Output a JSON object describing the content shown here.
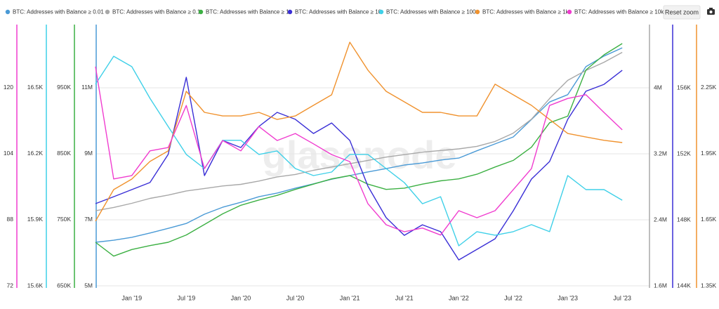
{
  "chart_data": {
    "type": "line",
    "reset_zoom": "Reset zoom",
    "watermark": "glassnode",
    "grid": true,
    "x": [
      "2018-09",
      "2018-11",
      "2019-01",
      "2019-03",
      "2019-05",
      "2019-07",
      "2019-09",
      "2019-11",
      "2020-01",
      "2020-03",
      "2020-05",
      "2020-07",
      "2020-09",
      "2020-11",
      "2021-01",
      "2021-03",
      "2021-05",
      "2021-07",
      "2021-09",
      "2021-11",
      "2022-01",
      "2022-03",
      "2022-05",
      "2022-07",
      "2022-09",
      "2022-11",
      "2023-01",
      "2023-03",
      "2023-05",
      "2023-07"
    ],
    "xlim": [
      "2018-09",
      "2023-10"
    ],
    "xticks": [
      {
        "value": "2019-01",
        "label": "Jan '19"
      },
      {
        "value": "2019-07",
        "label": "Jul '19"
      },
      {
        "value": "2020-01",
        "label": "Jan '20"
      },
      {
        "value": "2020-07",
        "label": "Jul '20"
      },
      {
        "value": "2021-01",
        "label": "Jan '21"
      },
      {
        "value": "2021-07",
        "label": "Jul '21"
      },
      {
        "value": "2022-01",
        "label": "Jan '22"
      },
      {
        "value": "2022-07",
        "label": "Jul '22"
      },
      {
        "value": "2023-01",
        "label": "Jan '23"
      },
      {
        "value": "2023-07",
        "label": "Jul '23"
      }
    ],
    "series": [
      {
        "name": "BTC: Addresses with Balance ≥ 0.01",
        "color": "#4a9ad6",
        "side": "left",
        "ylim": [
          5000000,
          12914000
        ],
        "yticks": [
          {
            "value": 5000000,
            "label": "5M"
          },
          {
            "value": 7000000,
            "label": "7M"
          },
          {
            "value": 9000000,
            "label": "9M"
          },
          {
            "value": 11000000,
            "label": "11M"
          }
        ],
        "values": [
          6320000,
          6380000,
          6470000,
          6600000,
          6740000,
          6890000,
          7170000,
          7380000,
          7530000,
          7700000,
          7810000,
          7960000,
          8090000,
          8230000,
          8340000,
          8450000,
          8550000,
          8660000,
          8720000,
          8810000,
          8870000,
          9090000,
          9300000,
          9510000,
          10040000,
          10570000,
          10790000,
          11640000,
          11960000,
          12210000
        ]
      },
      {
        "name": "BTC: Addresses with Balance ≥ 0.1",
        "color": "#a8a8a8",
        "side": "right",
        "ylim": [
          1600000,
          4766000
        ],
        "yticks": [
          {
            "value": 1600000,
            "label": "1.6M"
          },
          {
            "value": 2400000,
            "label": "2.4M"
          },
          {
            "value": 3200000,
            "label": "3.2M"
          },
          {
            "value": 4000000,
            "label": "4M"
          }
        ],
        "values": [
          2510000,
          2550000,
          2600000,
          2660000,
          2700000,
          2750000,
          2780000,
          2810000,
          2830000,
          2870000,
          2920000,
          2950000,
          3000000,
          3040000,
          3080000,
          3120000,
          3160000,
          3190000,
          3220000,
          3240000,
          3260000,
          3290000,
          3350000,
          3450000,
          3620000,
          3870000,
          4090000,
          4210000,
          4310000,
          4430000
        ]
      },
      {
        "name": "BTC: Addresses with Balance ≥ 1",
        "color": "#3cb043",
        "side": "left",
        "ylim": [
          650000,
          1045700
        ],
        "yticks": [
          {
            "value": 650000,
            "label": "650K"
          },
          {
            "value": 750000,
            "label": "750K"
          },
          {
            "value": 850000,
            "label": "850K"
          },
          {
            "value": 950000,
            "label": "950K"
          }
        ],
        "values": [
          716000,
          695000,
          705000,
          711000,
          716000,
          727000,
          743000,
          759000,
          772000,
          780000,
          787000,
          796000,
          804000,
          812000,
          817000,
          804000,
          796000,
          798000,
          804000,
          809000,
          812000,
          819000,
          830000,
          840000,
          860000,
          897000,
          907000,
          977000,
          1000000,
          1017000
        ]
      },
      {
        "name": "BTC: Addresses with Balance ≥ 10",
        "color": "#3a2fd6",
        "side": "right",
        "ylim": [
          144000,
          159830
        ],
        "yticks": [
          {
            "value": 144000,
            "label": "144K"
          },
          {
            "value": 148000,
            "label": "148K"
          },
          {
            "value": 152000,
            "label": "152K"
          },
          {
            "value": 156000,
            "label": "156K"
          }
        ],
        "values": [
          148980,
          149400,
          149830,
          150260,
          151960,
          156640,
          150680,
          152810,
          152380,
          153660,
          154510,
          154090,
          153230,
          153870,
          152810,
          150040,
          148130,
          147060,
          147700,
          147280,
          145570,
          146210,
          146850,
          148550,
          150470,
          151530,
          154090,
          155790,
          156210,
          157060
        ]
      },
      {
        "name": "BTC: Addresses with Balance ≥ 100",
        "color": "#3fd0e8",
        "side": "left",
        "ylim": [
          15600,
          16787
        ],
        "yticks": [
          {
            "value": 15600,
            "label": "15.6K"
          },
          {
            "value": 15900,
            "label": "15.9K"
          },
          {
            "value": 16200,
            "label": "16.2K"
          },
          {
            "value": 16500,
            "label": "16.5K"
          }
        ],
        "values": [
          16516,
          16643,
          16596,
          16452,
          16324,
          16197,
          16133,
          16261,
          16261,
          16197,
          16213,
          16133,
          16101,
          16117,
          16197,
          16197,
          16133,
          16069,
          15973,
          16005,
          15782,
          15846,
          15830,
          15846,
          15878,
          15846,
          16101,
          16037,
          16037,
          15989
        ]
      },
      {
        "name": "BTC: Addresses with Balance ≥ 1k",
        "color": "#f0922e",
        "side": "right",
        "ylim": [
          1350,
          2537
        ],
        "yticks": [
          {
            "value": 1350,
            "label": "1.35K"
          },
          {
            "value": 1650,
            "label": "1.65K"
          },
          {
            "value": 1950,
            "label": "1.95K"
          },
          {
            "value": 2250,
            "label": "2.25K"
          }
        ],
        "values": [
          1644,
          1787,
          1835,
          1915,
          1963,
          2234,
          2138,
          2122,
          2122,
          2138,
          2106,
          2122,
          2170,
          2218,
          2457,
          2330,
          2234,
          2186,
          2138,
          2138,
          2122,
          2122,
          2266,
          2218,
          2170,
          2106,
          2042,
          2026,
          2011,
          2001
        ]
      },
      {
        "name": "BTC: Addresses with Balance ≥ 10k",
        "color": "#f03ccf",
        "side": "left",
        "ylim": [
          72,
          135.3
        ],
        "yticks": [
          72,
          88,
          104,
          120
        ],
        "values": [
          125.1,
          97.9,
          98.7,
          104.7,
          105.5,
          115.7,
          100.4,
          107.2,
          104.7,
          110.6,
          107.2,
          108.9,
          106.4,
          103.8,
          102.1,
          91.9,
          86.8,
          85.1,
          86.0,
          84.3,
          90.2,
          88.5,
          90.2,
          95.3,
          100.4,
          115.7,
          117.4,
          118.3,
          114.0,
          109.8
        ]
      }
    ]
  }
}
